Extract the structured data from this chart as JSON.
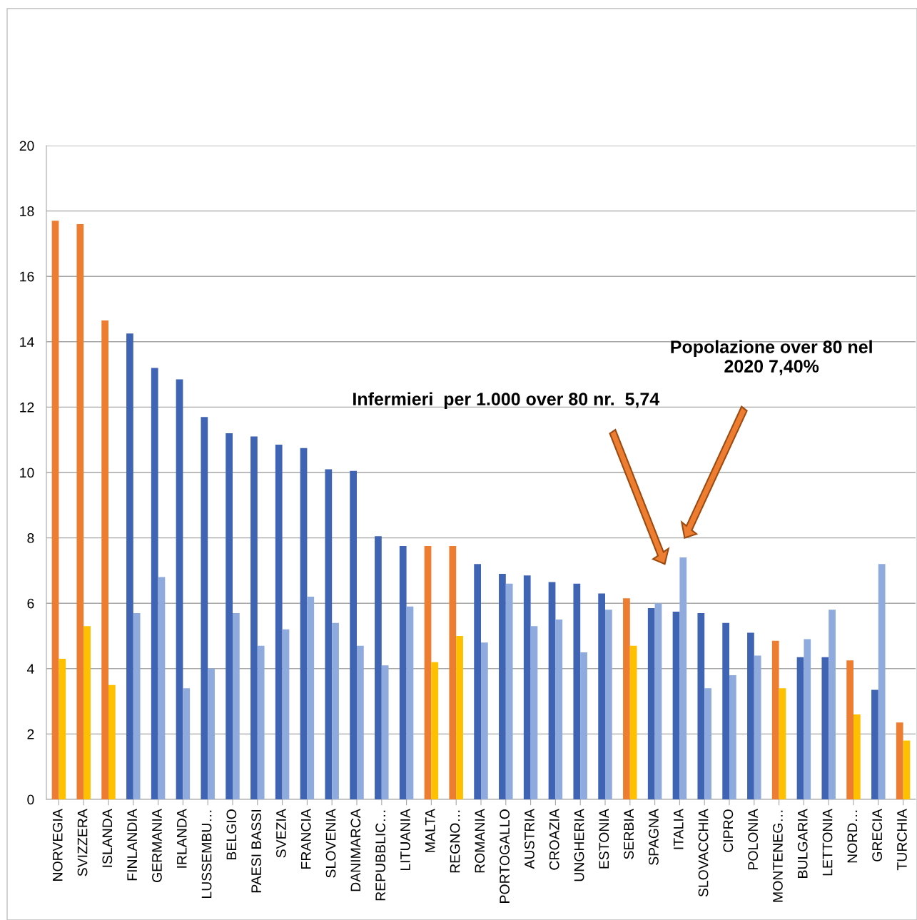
{
  "chart_data": {
    "type": "bar",
    "categories": [
      "NORVEGIA",
      "SVIZZERA",
      "ISLANDA",
      "FINLANDIA",
      "GERMANIA",
      "IRLANDA",
      "LUSSEMBU…",
      "BELGIO",
      "PAESI BASSI",
      "SVEZIA",
      "FRANCIA",
      "SLOVENIA",
      "DANIMARCA",
      "REPUBBLIC…",
      "LITUANIA",
      "MALTA",
      "REGNO…",
      "ROMANIA",
      "PORTOGALLO",
      "AUSTRIA",
      "CROAZIA",
      "UNGHERIA",
      "ESTONIA",
      "SERBIA",
      "SPAGNA",
      "ITALIA",
      "SLOVACCHIA",
      "CIPRO",
      "POLONIA",
      "MONTENEG…",
      "BULGARIA",
      "LETTONIA",
      "NORD…",
      "GRECIA",
      "TURCHIA"
    ],
    "series": [
      {
        "values": [
          17.7,
          17.6,
          14.65,
          14.25,
          13.2,
          12.85,
          11.7,
          11.2,
          11.1,
          10.85,
          10.75,
          10.1,
          10.05,
          8.05,
          7.75,
          7.75,
          7.75,
          7.2,
          6.9,
          6.85,
          6.65,
          6.6,
          6.3,
          6.15,
          5.85,
          5.74,
          5.7,
          5.4,
          5.1,
          4.85,
          4.35,
          4.35,
          4.25,
          3.35,
          2.35
        ],
        "colors": [
          "#ed7d31",
          "#ed7d31",
          "#ed7d31",
          "#4064b4",
          "#4064b4",
          "#4064b4",
          "#4064b4",
          "#4064b4",
          "#4064b4",
          "#4064b4",
          "#4064b4",
          "#4064b4",
          "#4064b4",
          "#4064b4",
          "#4064b4",
          "#ed7d31",
          "#ed7d31",
          "#4064b4",
          "#4064b4",
          "#4064b4",
          "#4064b4",
          "#4064b4",
          "#4064b4",
          "#ed7d31",
          "#4064b4",
          "#4064b4",
          "#4064b4",
          "#4064b4",
          "#4064b4",
          "#ed7d31",
          "#4064b4",
          "#4064b4",
          "#ed7d31",
          "#4064b4",
          "#ed7d31"
        ]
      },
      {
        "values": [
          4.3,
          5.3,
          3.5,
          5.7,
          6.8,
          3.4,
          4.0,
          5.7,
          4.7,
          5.2,
          6.2,
          5.4,
          4.7,
          4.1,
          5.9,
          4.2,
          5.0,
          4.8,
          6.6,
          5.3,
          5.5,
          4.5,
          5.8,
          4.7,
          6.0,
          7.4,
          3.4,
          3.8,
          4.4,
          3.4,
          4.9,
          5.8,
          2.6,
          7.2,
          1.8
        ],
        "colors": [
          "#ffc000",
          "#ffc000",
          "#ffc000",
          "#8faadc",
          "#8faadc",
          "#8faadc",
          "#8faadc",
          "#8faadc",
          "#8faadc",
          "#8faadc",
          "#8faadc",
          "#8faadc",
          "#8faadc",
          "#8faadc",
          "#8faadc",
          "#ffc000",
          "#ffc000",
          "#8faadc",
          "#8faadc",
          "#8faadc",
          "#8faadc",
          "#8faadc",
          "#8faadc",
          "#ffc000",
          "#8faadc",
          "#8faadc",
          "#8faadc",
          "#8faadc",
          "#8faadc",
          "#ffc000",
          "#8faadc",
          "#8faadc",
          "#ffc000",
          "#8faadc",
          "#ffc000"
        ]
      }
    ],
    "ylim": [
      0,
      20
    ],
    "yticks": [
      0,
      2,
      4,
      6,
      8,
      10,
      12,
      14,
      16,
      18,
      20
    ],
    "grid": "y",
    "annotations": [
      "Infermieri  per 1.000 over 80 nr.  5,74",
      "Popolazione over 80 nel\n2020 7,40%"
    ]
  }
}
